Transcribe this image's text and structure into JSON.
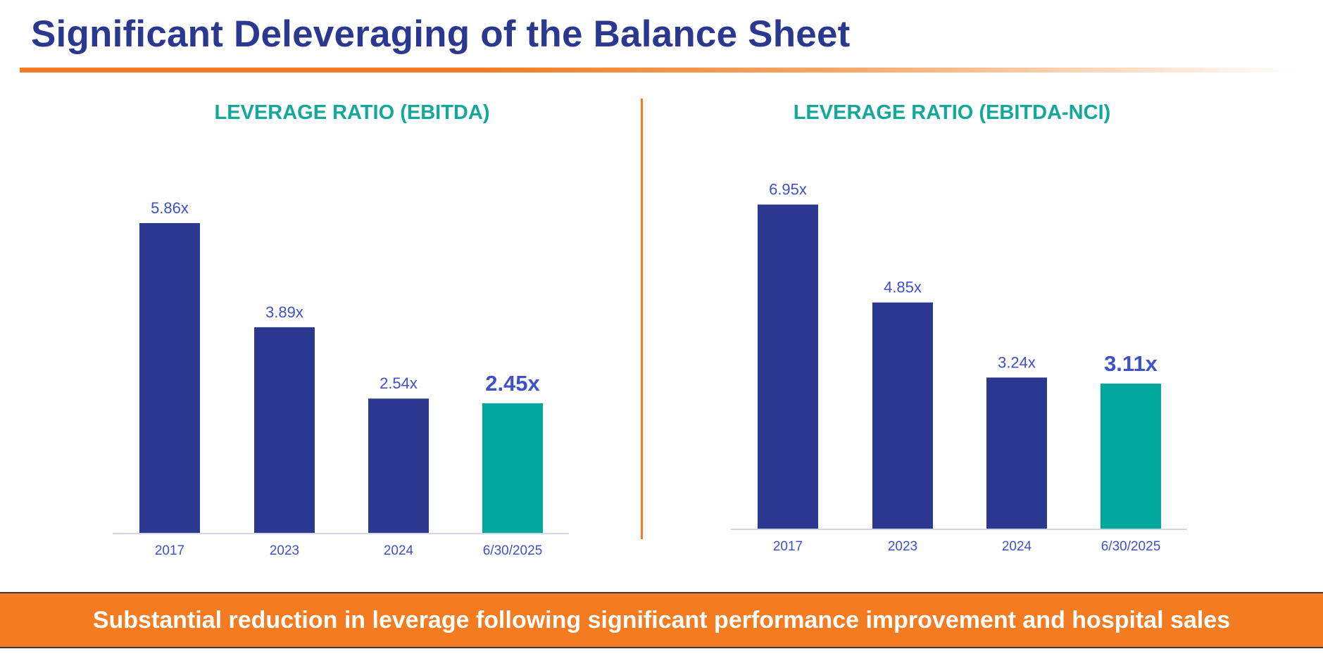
{
  "page": {
    "title": "Significant Deleveraging of the Balance Sheet",
    "banner": "Substantial reduction in leverage following significant performance improvement and hospital sales"
  },
  "colors": {
    "title": "#2b388f",
    "bar_primary": "#2b388f",
    "bar_highlight": "#00a79d",
    "value_label": "#3f51c8",
    "heading": "#12a89a",
    "accent": "#f47b20",
    "axis": "#d4d7ea"
  },
  "chart_data": [
    {
      "type": "bar",
      "title": "LEVERAGE RATIO (EBITDA)",
      "categories": [
        "2017",
        "2023",
        "2024",
        "6/30/2025"
      ],
      "values": [
        5.86,
        3.89,
        2.54,
        2.45
      ],
      "value_labels": [
        "5.86x",
        "3.89x",
        "2.54x",
        "2.45x"
      ],
      "highlight_index": 3,
      "xlabel": "",
      "ylabel": "",
      "ylim": [
        0,
        6.5
      ],
      "grid": false,
      "legend": "none"
    },
    {
      "type": "bar",
      "title": "LEVERAGE RATIO (EBITDA-NCI)",
      "categories": [
        "2017",
        "2023",
        "2024",
        "6/30/2025"
      ],
      "values": [
        6.95,
        4.85,
        3.24,
        3.11
      ],
      "value_labels": [
        "6.95x",
        "4.85x",
        "3.24x",
        "3.11x"
      ],
      "highlight_index": 3,
      "xlabel": "",
      "ylabel": "",
      "ylim": [
        0,
        7.7
      ],
      "grid": false,
      "legend": "none"
    }
  ]
}
